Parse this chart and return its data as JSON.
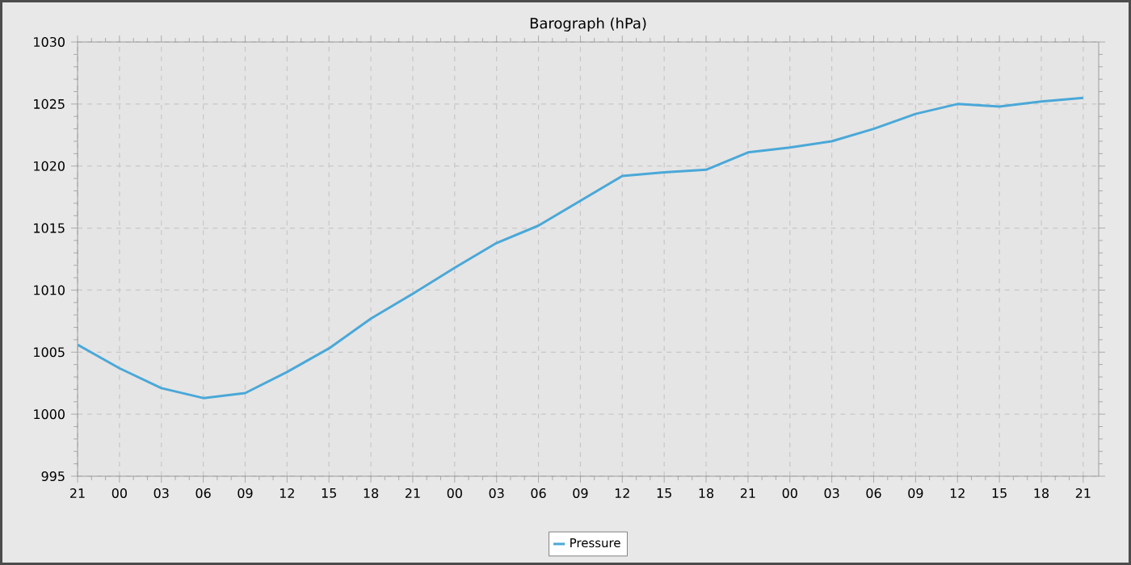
{
  "chart_data": {
    "type": "line",
    "title": "Barograph (hPa)",
    "categories": [
      "21",
      "00",
      "03",
      "06",
      "09",
      "12",
      "15",
      "18",
      "21",
      "00",
      "03",
      "06",
      "09",
      "12",
      "15",
      "18",
      "21",
      "00",
      "03",
      "06",
      "09",
      "12",
      "15",
      "18",
      "21"
    ],
    "series": [
      {
        "name": "Pressure",
        "color": "#4aa8d8",
        "values": [
          1005.6,
          1003.7,
          1002.1,
          1001.3,
          1001.7,
          1003.4,
          1005.3,
          1007.7,
          1009.7,
          1011.8,
          1013.8,
          1015.2,
          1017.2,
          1019.2,
          1019.5,
          1019.7,
          1021.1,
          1021.5,
          1022.0,
          1023.0,
          1024.2,
          1025.0,
          1024.8,
          1025.2,
          1025.5
        ]
      }
    ],
    "ylim": [
      995,
      1030
    ],
    "yticks": [
      995,
      1000,
      1005,
      1010,
      1015,
      1020,
      1025,
      1030
    ],
    "grid": true,
    "legend": "bottom",
    "marker": "none",
    "line_style": "solid"
  }
}
